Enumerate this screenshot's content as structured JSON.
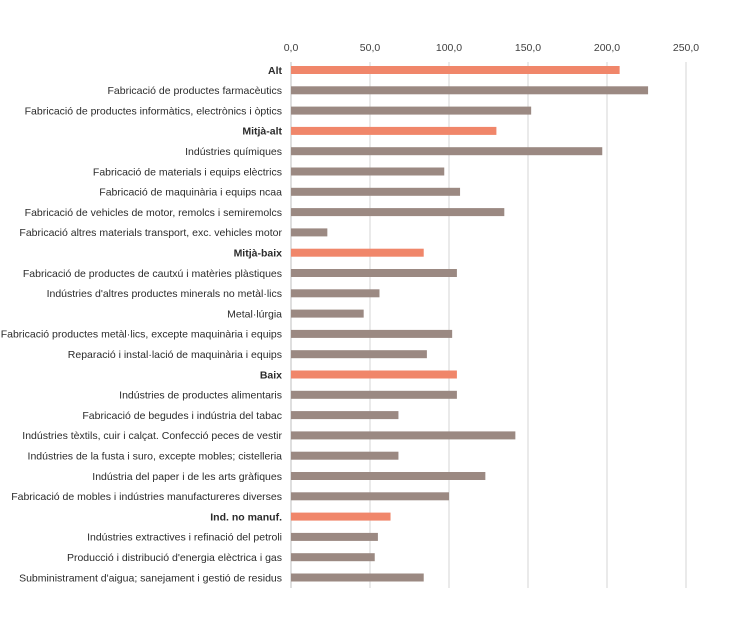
{
  "chart_data": {
    "type": "bar",
    "orientation": "horizontal",
    "title": "",
    "xlabel": "",
    "ylabel": "",
    "xlim": [
      0,
      250
    ],
    "x_ticks": [
      "0,0",
      "50,0",
      "100,0",
      "150,0",
      "200,0",
      "250,0"
    ],
    "x_tick_values": [
      0,
      50,
      100,
      150,
      200,
      250
    ],
    "x_axis_position": "top",
    "grid": true,
    "legend": "none",
    "colors": {
      "group": "#f0866a",
      "sector": "#9b8982"
    },
    "categories": [
      "Alt",
      "Fabricació de productes farmacèutics",
      "Fabricació de productes informàtics, electrònics i òptics",
      "Mitjà-alt",
      "Indústries químiques",
      "Fabricació de materials i equips elèctrics",
      "Fabricació de maquinària i equips ncaa",
      "Fabricació de vehicles de motor, remolcs i semiremolcs",
      "Fabricació altres materials transport, exc. vehicles motor",
      "Mitjà-baix",
      "Fabricació de productes de cautxú i matèries plàstiques",
      "Indústries d'altres productes minerals no metàl·lics",
      "Metal·lúrgia",
      "Fabricació productes metàl·lics, excepte maquinària i equips",
      "Reparació i instal·lació de maquinària i equips",
      "Baix",
      "Indústries de productes alimentaris",
      "Fabricació de begudes i indústria del tabac",
      "Indústries tèxtils, cuir i calçat. Confecció peces de vestir",
      "Indústries de la fusta i suro, excepte mobles; cistelleria",
      "Indústria del paper i de les arts gràfiques",
      "Fabricació de mobles i indústries manufactureres diverses",
      "Ind. no manuf.",
      "Indústries extractives i refinació del petroli",
      "Producció i distribució d'energia elèctrica i gas",
      "Subministrament d'aigua; sanejament i gestió de residus"
    ],
    "values": [
      208,
      226,
      152,
      130,
      197,
      97,
      107,
      135,
      23,
      84,
      105,
      56,
      46,
      102,
      86,
      105,
      105,
      68,
      142,
      68,
      123,
      100,
      63,
      55,
      53,
      84
    ],
    "is_group": [
      true,
      false,
      false,
      true,
      false,
      false,
      false,
      false,
      false,
      true,
      false,
      false,
      false,
      false,
      false,
      true,
      false,
      false,
      false,
      false,
      false,
      false,
      true,
      false,
      false,
      false
    ]
  }
}
